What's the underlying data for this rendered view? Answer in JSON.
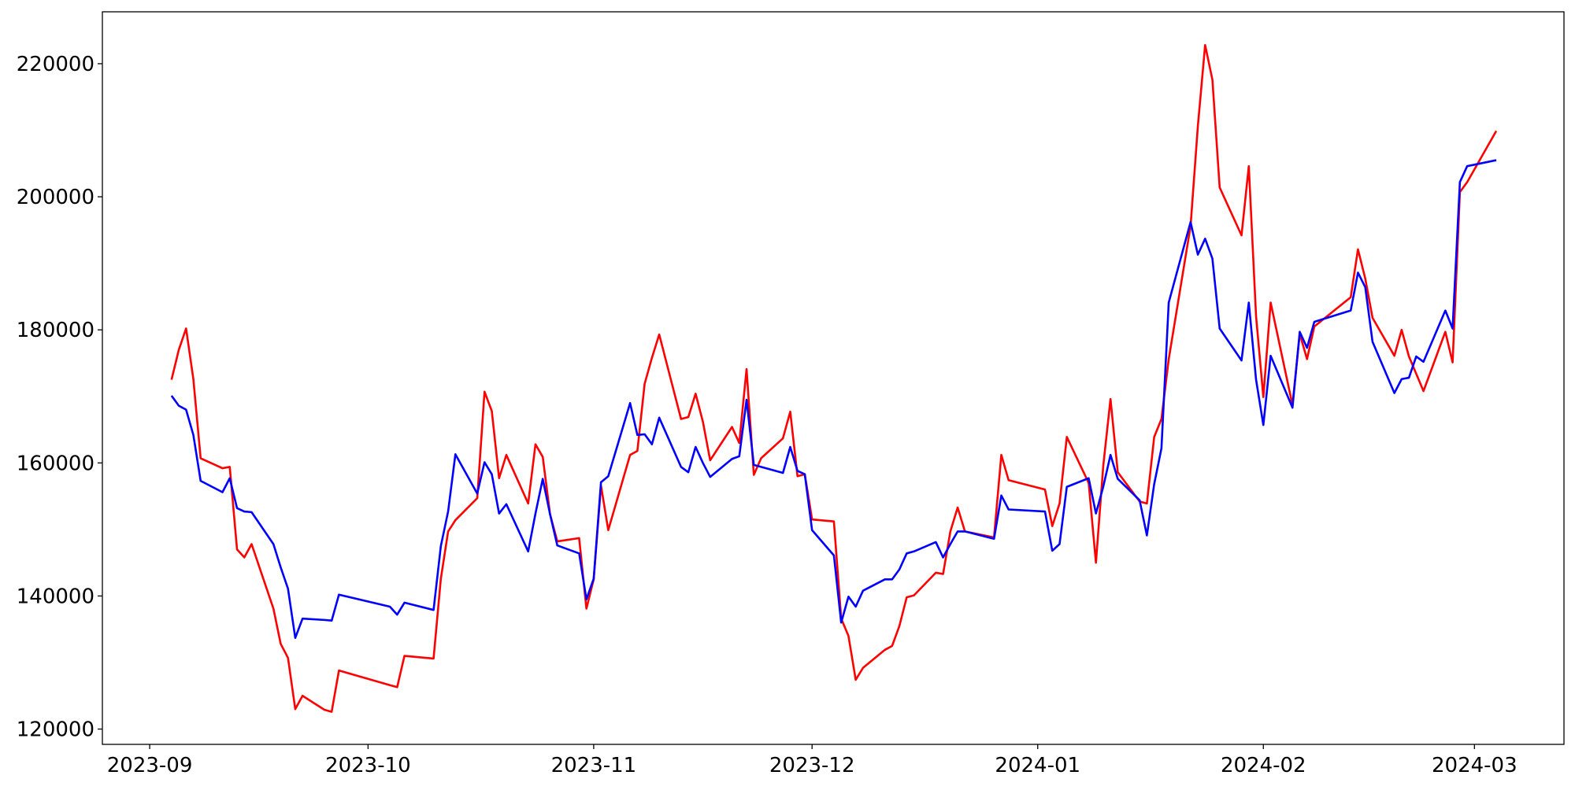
{
  "chart_data": {
    "type": "line",
    "x": [
      3,
      4,
      5,
      6,
      7,
      10,
      11,
      12,
      13,
      14,
      17,
      18,
      19,
      20,
      21,
      24,
      25,
      26,
      33,
      34,
      35,
      39,
      40,
      41,
      42,
      45,
      46,
      47,
      48,
      49,
      52,
      53,
      54,
      55,
      56,
      59,
      60,
      61,
      62,
      63,
      66,
      67,
      68,
      69,
      70,
      73,
      74,
      75,
      76,
      77,
      80,
      81,
      82,
      83,
      84,
      87,
      88,
      89,
      90,
      91,
      94,
      95,
      96,
      97,
      98,
      101,
      102,
      103,
      104,
      105,
      108,
      109,
      110,
      111,
      112,
      116,
      117,
      118,
      123,
      124,
      125,
      126,
      129,
      130,
      131,
      132,
      133,
      136,
      137,
      138,
      139,
      140,
      143,
      144,
      145,
      146,
      147,
      150,
      151,
      152,
      153,
      154,
      157,
      158,
      159,
      160,
      165,
      166,
      167,
      168,
      171,
      172,
      173,
      174,
      175,
      178,
      179,
      180,
      181,
      185
    ],
    "xlim": [
      -6.5,
      194.3
    ],
    "xticks": [
      {
        "value": 0,
        "label": "2023-09"
      },
      {
        "value": 30,
        "label": "2023-10"
      },
      {
        "value": 61,
        "label": "2023-11"
      },
      {
        "value": 91,
        "label": "2023-12"
      },
      {
        "value": 122,
        "label": "2024-01"
      },
      {
        "value": 153,
        "label": "2024-02"
      },
      {
        "value": 182,
        "label": "2024-03"
      }
    ],
    "ylim": [
      117700,
      227800
    ],
    "yticks": [
      120000,
      140000,
      160000,
      180000,
      200000,
      220000
    ],
    "grid": false,
    "series": [
      {
        "color": "#ff0000",
        "values": [
          172500,
          177000,
          180200,
          172600,
          160700,
          159200,
          159400,
          147000,
          145800,
          147800,
          138100,
          132800,
          130700,
          123000,
          125000,
          122900,
          122600,
          128800,
          126600,
          126300,
          131000,
          130600,
          142600,
          149700,
          151400,
          154700,
          170700,
          167800,
          157700,
          161200,
          153900,
          162800,
          160900,
          152300,
          148200,
          148700,
          138100,
          142500,
          156600,
          149900,
          161200,
          161800,
          171900,
          175800,
          179300,
          166600,
          166900,
          170400,
          166200,
          160400,
          165400,
          163000,
          174100,
          158200,
          160700,
          163700,
          167700,
          158000,
          158300,
          151500,
          151200,
          136600,
          134000,
          127400,
          129200,
          131900,
          132500,
          135500,
          139800,
          140100,
          143500,
          143300,
          149700,
          153300,
          149700,
          148800,
          161200,
          157400,
          156000,
          150500,
          153900,
          163900,
          157000,
          145000,
          159500,
          169600,
          158600,
          154200,
          153900,
          163900,
          166600,
          175600,
          195600,
          210600,
          222800,
          217600,
          201400,
          194200,
          204600,
          182000,
          169900,
          184100,
          168700,
          179400,
          175600,
          180500,
          184900,
          192100,
          187700,
          181800,
          176100,
          180000,
          176000,
          173400,
          170800,
          179700,
          175100,
          200700,
          202200,
          209900
        ]
      },
      {
        "color": "#0000ff",
        "values": [
          170100,
          168600,
          168000,
          164200,
          157300,
          155600,
          157700,
          153200,
          152700,
          152600,
          147800,
          144300,
          141100,
          133700,
          136600,
          136400,
          136300,
          140200,
          138400,
          137200,
          139000,
          137900,
          147500,
          152700,
          161300,
          155400,
          160100,
          158300,
          152400,
          153800,
          146700,
          152400,
          157600,
          152300,
          147600,
          146400,
          139500,
          142600,
          157100,
          158000,
          169000,
          164200,
          164300,
          162800,
          166800,
          159400,
          158600,
          162400,
          160000,
          157900,
          160600,
          161000,
          169500,
          159700,
          159400,
          158500,
          162400,
          158800,
          158300,
          149900,
          146100,
          136000,
          139900,
          138400,
          140800,
          142500,
          142500,
          144000,
          146400,
          146700,
          148100,
          145800,
          147800,
          149700,
          149700,
          148600,
          155100,
          153000,
          152700,
          146800,
          147800,
          156400,
          157700,
          152400,
          156400,
          161200,
          157600,
          154400,
          149100,
          156800,
          162200,
          184100,
          196200,
          191300,
          193700,
          190700,
          180200,
          175400,
          184100,
          172500,
          165700,
          176100,
          168300,
          179700,
          177300,
          181200,
          182900,
          188600,
          186400,
          178200,
          170500,
          172600,
          172800,
          176000,
          175200,
          182900,
          180200,
          202200,
          204600,
          205500
        ]
      }
    ]
  }
}
